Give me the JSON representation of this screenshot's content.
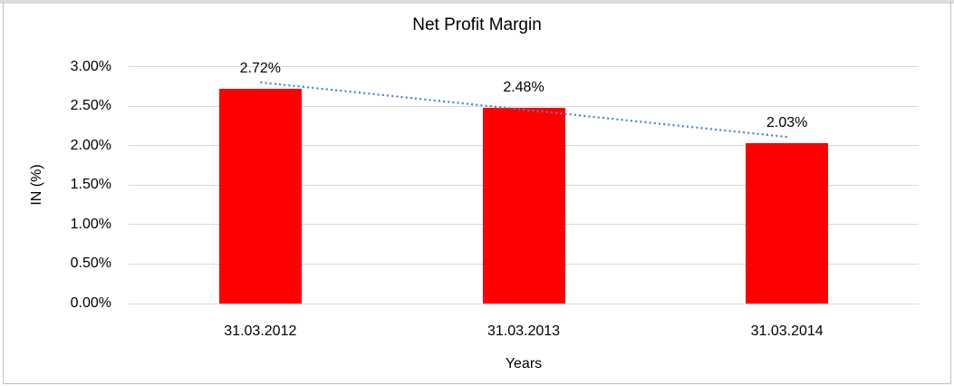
{
  "window": {
    "background": "#ffffff",
    "border_color": "#bfbfbf",
    "top_edge_color": "#dcdcdc"
  },
  "chart_data": {
    "type": "bar",
    "title": "Net Profit Margin",
    "categories": [
      "31.03.2012",
      "31.03.2013",
      "31.03.2014"
    ],
    "values": [
      2.72,
      2.48,
      2.03
    ],
    "data_labels": [
      "2.72%",
      "2.48%",
      "2.03%"
    ],
    "xlabel": "Years",
    "ylabel": "IN (%)",
    "ylim": [
      0,
      3
    ],
    "ytick_step": 0.5,
    "ytick_labels": [
      "0.00%",
      "0.50%",
      "1.00%",
      "1.50%",
      "2.00%",
      "2.50%",
      "3.00%"
    ],
    "grid": true,
    "gridline_color": "#d9d9d9",
    "legend": "none",
    "bar_color": "#ff0000",
    "text_color": "#000000",
    "trendline": {
      "type": "linear",
      "style": "dotted",
      "color": "#4f81bd",
      "start_value": 2.8,
      "end_value": 2.11
    }
  }
}
